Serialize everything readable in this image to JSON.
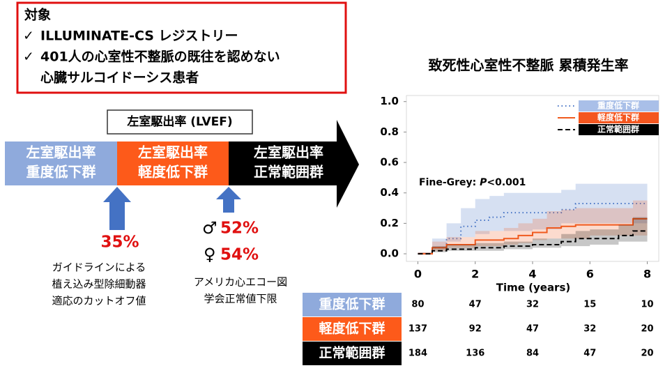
{
  "target_box": {
    "heading": "対象",
    "check": "✓",
    "items": [
      [
        "ILLUMINATE-CS レジストリー"
      ],
      [
        "401人の心室性不整脈の既往を認めない",
        "心臓サルコイドーシス患者"
      ]
    ]
  },
  "lvef": {
    "title": "左室駆出率 (LVEF)",
    "groups": [
      {
        "lines": [
          "左室駆出率",
          "重度低下群"
        ],
        "color": "#8faadc"
      },
      {
        "lines": [
          "左室駆出率",
          "軽度低下群"
        ],
        "color": "#fd5a1a"
      },
      {
        "lines": [
          "左室駆出率",
          "正常範囲群"
        ],
        "color": "#000000"
      }
    ],
    "cutoff_icd": {
      "value": "35%",
      "note": [
        "ガイドラインによる",
        "植え込み型除細動器",
        "適応のカットオフ値"
      ]
    },
    "cutoff_echo": {
      "male_symbol": "♂",
      "male": "52%",
      "female_symbol": "♀",
      "female": "54%",
      "note": [
        "アメリカ心エコー図",
        "学会正常値下限"
      ]
    }
  },
  "chart_data": {
    "type": "line",
    "step": true,
    "title": "致死性心室性不整脈 累積発生率",
    "x_label": "Time (years)",
    "annotation": [
      "Fine-Grey: ",
      "P",
      "<0.001"
    ],
    "xlim": [
      -0.4,
      8.4
    ],
    "xticks": [
      0,
      2,
      4,
      6,
      8
    ],
    "ylim": [
      -0.05,
      1.04
    ],
    "yticks": [
      {
        "value": 0,
        "label": "0.0"
      },
      0.2,
      0.4,
      0.6,
      0.8,
      {
        "value": 1,
        "label": "1.0"
      }
    ],
    "grid": false,
    "series": [
      {
        "name": "重度低下群",
        "color": "#4472c4",
        "style": "dotted",
        "legend_color": "#a9bfe8",
        "x": [
          0,
          0.5,
          1,
          1.5,
          2,
          2.5,
          3,
          4,
          5,
          5.5,
          6,
          8
        ],
        "values": [
          0,
          0.04,
          0.1,
          0.18,
          0.22,
          0.24,
          0.27,
          0.27,
          0.29,
          0.33,
          0.33,
          0.33
        ],
        "lower": [
          0,
          0.01,
          0.04,
          0.08,
          0.11,
          0.13,
          0.15,
          0.15,
          0.16,
          0.2,
          0.2,
          0.2
        ],
        "upper": [
          0,
          0.1,
          0.2,
          0.3,
          0.36,
          0.38,
          0.4,
          0.4,
          0.42,
          0.46,
          0.46,
          0.46
        ]
      },
      {
        "name": "軽度低下群",
        "color": "#f05a1e",
        "style": "solid",
        "legend_color": "#f4561f",
        "x": [
          0,
          0.5,
          1,
          2,
          3,
          3.5,
          4,
          4.5,
          5,
          5.5,
          6,
          7.5,
          8
        ],
        "values": [
          0,
          0.04,
          0.06,
          0.09,
          0.1,
          0.12,
          0.14,
          0.17,
          0.18,
          0.19,
          0.19,
          0.23,
          0.23
        ],
        "lower": [
          0,
          0.01,
          0.02,
          0.04,
          0.05,
          0.06,
          0.07,
          0.09,
          0.1,
          0.1,
          0.1,
          0.12,
          0.12
        ],
        "upper": [
          0,
          0.08,
          0.11,
          0.15,
          0.17,
          0.2,
          0.23,
          0.28,
          0.29,
          0.3,
          0.3,
          0.35,
          0.35
        ]
      },
      {
        "name": "正常範囲群",
        "color": "#000000",
        "style": "dashed",
        "legend_color": "#000000",
        "x": [
          0,
          0.5,
          1,
          2,
          3,
          4,
          5,
          5.5,
          6,
          7,
          7.5,
          8
        ],
        "values": [
          0,
          0.02,
          0.03,
          0.04,
          0.05,
          0.06,
          0.08,
          0.1,
          0.1,
          0.12,
          0.15,
          0.15
        ],
        "lower": [
          0,
          0,
          0.01,
          0.02,
          0.02,
          0.03,
          0.04,
          0.05,
          0.05,
          0.06,
          0.08,
          0.08
        ],
        "upper": [
          0,
          0.05,
          0.06,
          0.07,
          0.08,
          0.1,
          0.13,
          0.15,
          0.16,
          0.19,
          0.24,
          0.24
        ]
      }
    ],
    "risk_table": {
      "rows": [
        {
          "label": "重度低下群",
          "color": "#8faadc",
          "counts": [
            80,
            47,
            32,
            15,
            10
          ]
        },
        {
          "label": "軽度低下群",
          "color": "#fd5a1a",
          "counts": [
            137,
            92,
            47,
            32,
            20
          ]
        },
        {
          "label": "正常範囲群",
          "color": "#000000",
          "counts": [
            184,
            136,
            84,
            47,
            20
          ]
        }
      ]
    }
  }
}
